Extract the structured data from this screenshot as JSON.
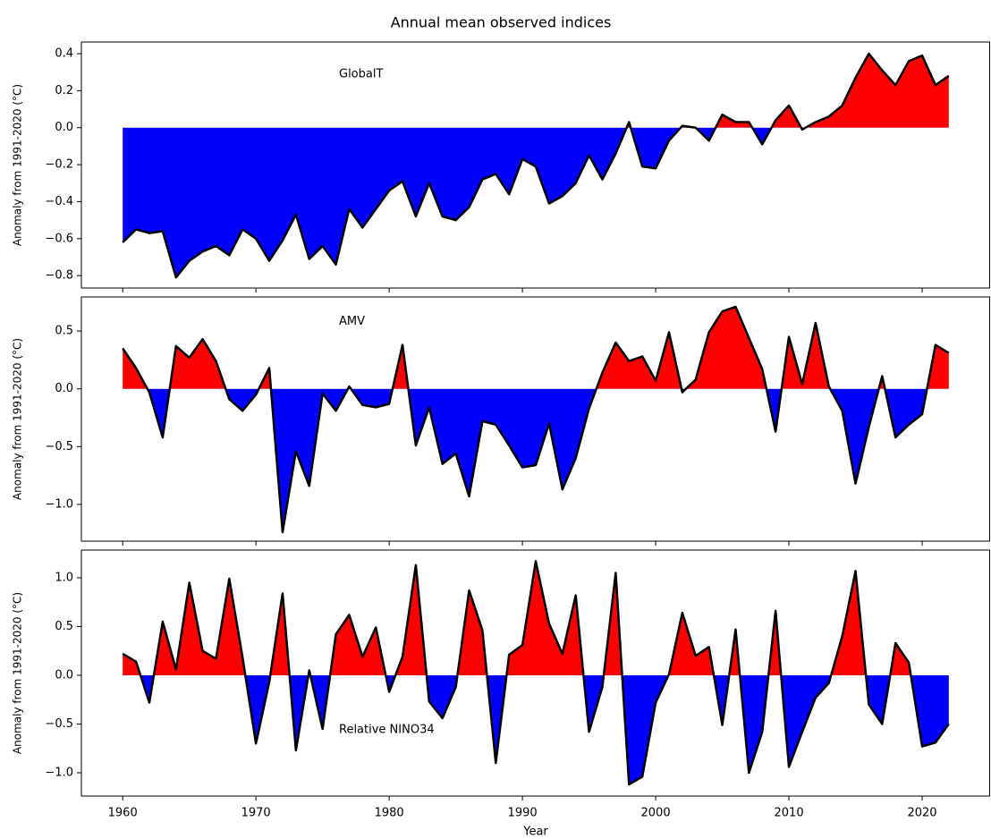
{
  "title": "Annual mean observed indices",
  "chart_data": [
    {
      "type": "area",
      "annotation": "GlobalT",
      "ylabel": "Anomaly from 1991-2020 (°C)",
      "line_color": "#000000",
      "positive_color": "#ff0000",
      "negative_color": "#0000ff",
      "x": [
        1960,
        1961,
        1962,
        1963,
        1964,
        1965,
        1966,
        1967,
        1968,
        1969,
        1970,
        1971,
        1972,
        1973,
        1974,
        1975,
        1976,
        1977,
        1978,
        1979,
        1980,
        1981,
        1982,
        1983,
        1984,
        1985,
        1986,
        1987,
        1988,
        1989,
        1990,
        1991,
        1992,
        1993,
        1994,
        1995,
        1996,
        1997,
        1998,
        1999,
        2000,
        2001,
        2002,
        2003,
        2004,
        2005,
        2006,
        2007,
        2008,
        2009,
        2010,
        2011,
        2012,
        2013,
        2014,
        2015,
        2016,
        2017,
        2018,
        2019,
        2020,
        2021,
        2022
      ],
      "values": [
        -0.62,
        -0.55,
        -0.57,
        -0.56,
        -0.81,
        -0.72,
        -0.67,
        -0.64,
        -0.69,
        -0.55,
        -0.6,
        -0.72,
        -0.61,
        -0.47,
        -0.71,
        -0.64,
        -0.74,
        -0.44,
        -0.54,
        -0.44,
        -0.34,
        -0.29,
        -0.48,
        -0.3,
        -0.48,
        -0.5,
        -0.43,
        -0.28,
        -0.25,
        -0.36,
        -0.17,
        -0.21,
        -0.41,
        -0.37,
        -0.3,
        -0.15,
        -0.28,
        -0.14,
        0.03,
        -0.21,
        -0.22,
        -0.07,
        0.01,
        0.0,
        -0.07,
        0.07,
        0.03,
        0.03,
        -0.09,
        0.04,
        0.12,
        -0.01,
        0.03,
        0.06,
        0.12,
        0.27,
        0.4,
        0.31,
        0.23,
        0.36,
        0.39,
        0.23,
        0.28
      ],
      "xlim": [
        1956.9,
        2025.1
      ],
      "ylim": [
        -0.867,
        0.463
      ],
      "xticks": [
        1960,
        1970,
        1980,
        1990,
        2000,
        2010,
        2020
      ],
      "yticks": [
        0.4,
        0.2,
        {
          "value": 0,
          "label": "0.0"
        },
        {
          "value": -0.2,
          "label": "−0.2"
        },
        {
          "value": -0.4,
          "label": "−0.4"
        },
        {
          "value": -0.6,
          "label": "−0.6"
        },
        {
          "value": -0.8,
          "label": "−0.8"
        }
      ]
    },
    {
      "type": "area",
      "annotation": "AMV",
      "ylabel": "Anomaly from 1991-2020 (°C)",
      "line_color": "#000000",
      "positive_color": "#ff0000",
      "negative_color": "#0000ff",
      "x": [
        1960,
        1961,
        1962,
        1963,
        1964,
        1965,
        1966,
        1967,
        1968,
        1969,
        1970,
        1971,
        1972,
        1973,
        1974,
        1975,
        1976,
        1977,
        1978,
        1979,
        1980,
        1981,
        1982,
        1983,
        1984,
        1985,
        1986,
        1987,
        1988,
        1989,
        1990,
        1991,
        1992,
        1993,
        1994,
        1995,
        1996,
        1997,
        1998,
        1999,
        2000,
        2001,
        2002,
        2003,
        2004,
        2005,
        2006,
        2007,
        2008,
        2009,
        2010,
        2011,
        2012,
        2013,
        2014,
        2015,
        2016,
        2017,
        2018,
        2019,
        2020,
        2021,
        2022
      ],
      "values": [
        0.35,
        0.18,
        -0.03,
        -0.42,
        0.37,
        0.27,
        0.43,
        0.24,
        -0.09,
        -0.19,
        -0.05,
        0.18,
        -1.24,
        -0.54,
        -0.84,
        -0.04,
        -0.19,
        0.02,
        -0.14,
        -0.16,
        -0.13,
        0.38,
        -0.49,
        -0.16,
        -0.65,
        -0.56,
        -0.93,
        -0.28,
        -0.31,
        -0.49,
        -0.68,
        -0.66,
        -0.3,
        -0.87,
        -0.6,
        -0.17,
        0.14,
        0.4,
        0.24,
        0.28,
        0.07,
        0.49,
        -0.03,
        0.08,
        0.49,
        0.67,
        0.71,
        0.44,
        0.17,
        -0.37,
        0.45,
        0.04,
        0.57,
        0.02,
        -0.19,
        -0.82,
        -0.33,
        0.11,
        -0.42,
        -0.31,
        -0.22,
        0.38,
        0.31
      ],
      "xlim": [
        1956.9,
        2025.1
      ],
      "ylim": [
        -1.318,
        0.795
      ],
      "xticks": [
        1960,
        1970,
        1980,
        1990,
        2000,
        2010,
        2020
      ],
      "yticks": [
        0.5,
        {
          "value": 0,
          "label": "0.0"
        },
        {
          "value": -0.5,
          "label": "−0.5"
        },
        {
          "value": -1,
          "label": "−1.0"
        }
      ]
    },
    {
      "type": "area",
      "annotation": "Relative NINO34",
      "ylabel": "Anomaly from 1991-2020 (°C)",
      "xlabel": "Year",
      "line_color": "#000000",
      "positive_color": "#ff0000",
      "negative_color": "#0000ff",
      "x": [
        1960,
        1961,
        1962,
        1963,
        1964,
        1965,
        1966,
        1967,
        1968,
        1969,
        1970,
        1971,
        1972,
        1973,
        1974,
        1975,
        1976,
        1977,
        1978,
        1979,
        1980,
        1981,
        1982,
        1983,
        1984,
        1985,
        1986,
        1987,
        1988,
        1989,
        1990,
        1991,
        1992,
        1993,
        1994,
        1995,
        1996,
        1997,
        1998,
        1999,
        2000,
        2001,
        2002,
        2003,
        2004,
        2005,
        2006,
        2007,
        2008,
        2009,
        2010,
        2011,
        2012,
        2013,
        2014,
        2015,
        2016,
        2017,
        2018,
        2019,
        2020,
        2021,
        2022
      ],
      "values": [
        0.22,
        0.14,
        -0.28,
        0.55,
        0.06,
        0.95,
        0.25,
        0.17,
        0.99,
        0.18,
        -0.7,
        -0.07,
        0.84,
        -0.77,
        0.05,
        -0.55,
        0.42,
        0.62,
        0.19,
        0.49,
        -0.17,
        0.19,
        1.13,
        -0.27,
        -0.44,
        -0.12,
        0.87,
        0.46,
        -0.9,
        0.21,
        0.31,
        1.17,
        0.53,
        0.22,
        0.82,
        -0.58,
        -0.12,
        1.05,
        -1.12,
        -1.04,
        -0.28,
        0.01,
        0.64,
        0.2,
        0.29,
        -0.51,
        0.47,
        -1.0,
        -0.58,
        0.66,
        -0.94,
        -0.58,
        -0.23,
        -0.08,
        0.4,
        1.07,
        -0.3,
        -0.5,
        0.33,
        0.13,
        -0.73,
        -0.69,
        -0.5
      ],
      "xlim": [
        1956.9,
        2025.1
      ],
      "ylim": [
        -1.239,
        1.284
      ],
      "xticks": [
        1960,
        1970,
        1980,
        1990,
        2000,
        2010,
        2020
      ],
      "yticks": [
        {
          "value": 1,
          "label": "1.0"
        },
        0.5,
        {
          "value": 0,
          "label": "0.0"
        },
        {
          "value": -0.5,
          "label": "−0.5"
        },
        {
          "value": -1,
          "label": "−1.0"
        }
      ]
    }
  ]
}
